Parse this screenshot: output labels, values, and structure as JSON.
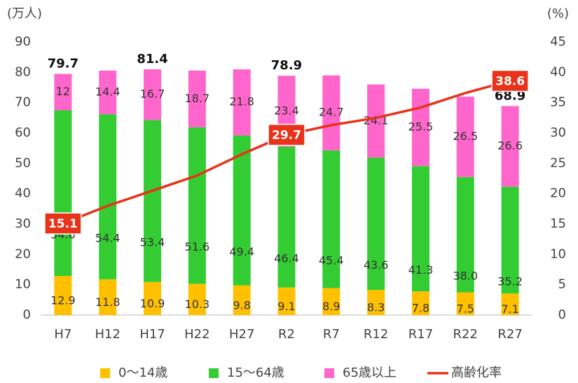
{
  "chart_data": {
    "type": "bar",
    "y_label": "(万人)",
    "y2_label": "(%)",
    "categories": [
      "H7",
      "H12",
      "H17",
      "H22",
      "H27",
      "R2",
      "R7",
      "R12",
      "R17",
      "R22",
      "R27"
    ],
    "stacked": true,
    "series": [
      {
        "name": "0～14歳",
        "color": "#ffc000",
        "values": [
          12.9,
          11.8,
          10.9,
          10.3,
          9.8,
          9.1,
          8.9,
          8.3,
          7.8,
          7.5,
          7.1
        ],
        "value_labels": [
          "12.9",
          "11.8",
          "10.9",
          "10.3",
          "9.8",
          "9.1",
          "8.9",
          "8.3",
          "7.8",
          "7.5",
          "7.1"
        ]
      },
      {
        "name": "15～64歳",
        "color": "#33cc33",
        "values": [
          54.6,
          54.4,
          53.4,
          51.6,
          49.4,
          46.4,
          45.4,
          43.6,
          41.3,
          38.0,
          35.2
        ],
        "value_labels": [
          "54.6",
          "54.4",
          "53.4",
          "51.6",
          "49.4",
          "46.4",
          "45.4",
          "43.6",
          "41.3",
          "38.0",
          "35.2"
        ]
      },
      {
        "name": "65歳以上",
        "color": "#ff66cc",
        "values": [
          12,
          14.4,
          16.7,
          18.7,
          21.8,
          23.4,
          24.7,
          24.1,
          25.5,
          26.5,
          26.6
        ],
        "value_labels": [
          "12",
          "14.4",
          "16.7",
          "18.7",
          "21.8",
          "23.4",
          "24.7",
          "24.1",
          "25.5",
          "26.5",
          "26.6"
        ]
      },
      {
        "name": "高齢化率",
        "type": "line",
        "axis": "y2",
        "color": "#e8321a",
        "values": [
          15.1,
          18.0,
          20.5,
          23.0,
          26.5,
          29.7,
          31.3,
          32.5,
          34.2,
          36.6,
          38.6
        ],
        "value_labels": [
          "15.1",
          null,
          null,
          null,
          null,
          "29.7",
          null,
          null,
          null,
          null,
          "38.6"
        ]
      }
    ],
    "totals": [
      79.7,
      null,
      81.4,
      null,
      null,
      78.9,
      null,
      null,
      null,
      null,
      68.9
    ],
    "ylim": [
      0,
      90
    ],
    "yticks": [
      0,
      10,
      20,
      30,
      40,
      50,
      60,
      70,
      80,
      90
    ],
    "y2lim": [
      0,
      45
    ],
    "y2ticks": [
      0,
      5,
      10,
      15,
      20,
      25,
      30,
      35,
      40,
      45
    ],
    "grid": false,
    "legend": "bottom"
  }
}
